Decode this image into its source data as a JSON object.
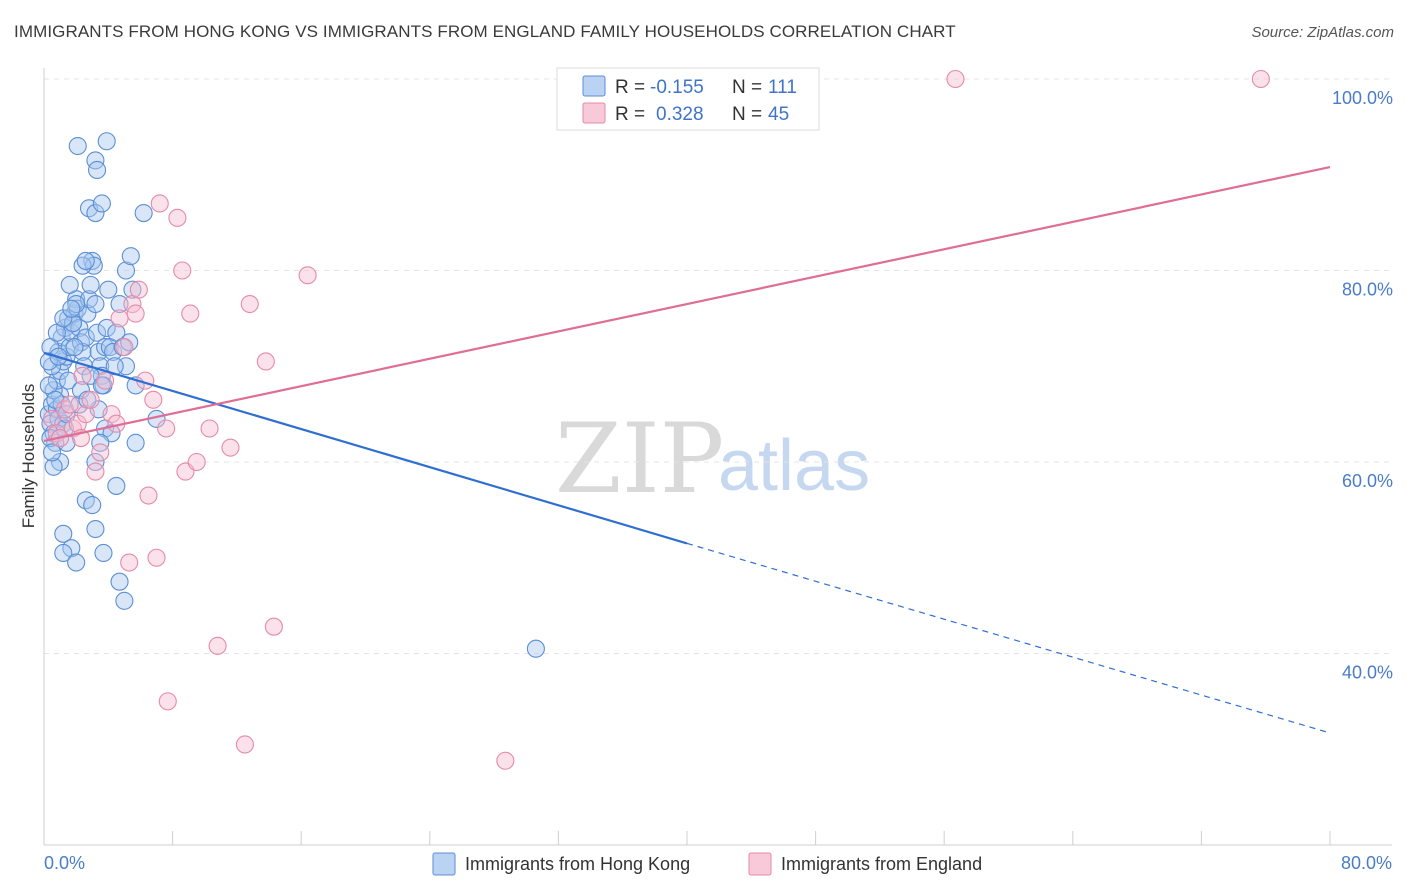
{
  "header": {
    "title": "IMMIGRANTS FROM HONG KONG VS IMMIGRANTS FROM ENGLAND FAMILY HOUSEHOLDS CORRELATION CHART",
    "source": "Source: ZipAtlas.com"
  },
  "legend": {
    "rows": [
      {
        "r_label": "R =",
        "r_value": "-0.155",
        "n_label": "N =",
        "n_value": "111"
      },
      {
        "r_label": "R =",
        "r_value": "0.328",
        "n_label": "N =",
        "n_value": "45"
      }
    ]
  },
  "watermark": {
    "zip": "ZIP",
    "atlas": "atlas"
  },
  "colors": {
    "hk_fill": "#a9c8f0",
    "hk_stroke": "#5b8fd6",
    "hk_line": "#2f6fd1",
    "en_fill": "#f6bcd0",
    "en_stroke": "#e58aa9",
    "en_line": "#e06d95",
    "grid": "#e4e4e4",
    "tick_text": "#4a7cc9"
  },
  "chart_data": {
    "type": "scatter",
    "title": "IMMIGRANTS FROM HONG KONG VS IMMIGRANTS FROM ENGLAND FAMILY HOUSEHOLDS CORRELATION CHART",
    "xlabel": "",
    "ylabel": "Family Households",
    "xlim": [
      0,
      80
    ],
    "ylim": [
      20,
      100
    ],
    "x_tick_labels": [
      "0.0%",
      "80.0%"
    ],
    "y_ticks": [
      40,
      60,
      80,
      100
    ],
    "y_tick_labels": [
      "40.0%",
      "60.0%",
      "80.0%",
      "100.0%"
    ],
    "grid": true,
    "legend_position": "top-center",
    "series": [
      {
        "name": "Immigrants from Hong Kong",
        "r": -0.155,
        "n": 111,
        "trend": {
          "x0": 0,
          "y0": 71.4,
          "x1": 40,
          "y1": 51.5,
          "dashed_to_x": 80,
          "dashed_to_y": 31.7
        },
        "points": [
          [
            0.3,
            65.0
          ],
          [
            0.4,
            64.0
          ],
          [
            0.5,
            66.0
          ],
          [
            0.6,
            63.0
          ],
          [
            0.7,
            62.0
          ],
          [
            0.8,
            65.5
          ],
          [
            0.9,
            64.5
          ],
          [
            1.0,
            67.0
          ],
          [
            1.1,
            66.0
          ],
          [
            1.2,
            64.0
          ],
          [
            1.3,
            63.5
          ],
          [
            1.4,
            65.0
          ],
          [
            0.4,
            62.5
          ],
          [
            0.6,
            67.5
          ],
          [
            0.8,
            68.5
          ],
          [
            1.0,
            69.5
          ],
          [
            1.2,
            70.5
          ],
          [
            1.4,
            71.0
          ],
          [
            0.5,
            70.0
          ],
          [
            0.9,
            71.5
          ],
          [
            1.1,
            73.0
          ],
          [
            1.3,
            74.0
          ],
          [
            1.5,
            75.0
          ],
          [
            1.6,
            72.0
          ],
          [
            1.7,
            73.5
          ],
          [
            1.8,
            74.5
          ],
          [
            1.9,
            75.5
          ],
          [
            2.0,
            77.0
          ],
          [
            2.1,
            76.0
          ],
          [
            2.2,
            74.0
          ],
          [
            2.3,
            72.5
          ],
          [
            2.4,
            71.5
          ],
          [
            2.5,
            70.0
          ],
          [
            2.6,
            73.0
          ],
          [
            2.7,
            75.5
          ],
          [
            2.8,
            77.0
          ],
          [
            2.9,
            78.5
          ],
          [
            3.0,
            81.0
          ],
          [
            3.1,
            80.5
          ],
          [
            3.2,
            76.5
          ],
          [
            3.3,
            73.5
          ],
          [
            3.4,
            71.5
          ],
          [
            3.5,
            70.0
          ],
          [
            3.6,
            69.0
          ],
          [
            3.7,
            68.0
          ],
          [
            3.8,
            72.0
          ],
          [
            3.9,
            74.0
          ],
          [
            4.0,
            78.0
          ],
          [
            4.1,
            72.0
          ],
          [
            4.3,
            71.5
          ],
          [
            4.5,
            73.5
          ],
          [
            4.7,
            76.5
          ],
          [
            4.9,
            72.0
          ],
          [
            5.1,
            70.0
          ],
          [
            5.3,
            72.5
          ],
          [
            5.5,
            78.0
          ],
          [
            5.7,
            68.0
          ],
          [
            1.6,
            78.5
          ],
          [
            2.0,
            76.5
          ],
          [
            2.4,
            80.5
          ],
          [
            1.8,
            74.5
          ],
          [
            2.6,
            81.0
          ],
          [
            3.2,
            91.5
          ],
          [
            3.3,
            90.5
          ],
          [
            2.8,
            86.5
          ],
          [
            3.2,
            86.0
          ],
          [
            3.6,
            87.0
          ],
          [
            2.1,
            93.0
          ],
          [
            3.9,
            93.5
          ],
          [
            6.2,
            86.0
          ],
          [
            5.1,
            80.0
          ],
          [
            5.4,
            81.5
          ],
          [
            3.8,
            63.5
          ],
          [
            4.2,
            63.0
          ],
          [
            3.5,
            62.0
          ],
          [
            3.2,
            60.0
          ],
          [
            1.0,
            60.0
          ],
          [
            0.6,
            59.5
          ],
          [
            2.6,
            56.0
          ],
          [
            3.0,
            55.5
          ],
          [
            3.2,
            53.0
          ],
          [
            1.2,
            52.5
          ],
          [
            1.7,
            51.0
          ],
          [
            1.2,
            50.5
          ],
          [
            3.7,
            50.5
          ],
          [
            2.0,
            49.5
          ],
          [
            4.5,
            57.5
          ],
          [
            4.7,
            47.5
          ],
          [
            5.0,
            45.5
          ],
          [
            5.7,
            62.0
          ],
          [
            7.0,
            64.5
          ],
          [
            0.3,
            68.0
          ],
          [
            0.7,
            66.5
          ],
          [
            1.5,
            68.5
          ],
          [
            2.2,
            66.0
          ],
          [
            2.9,
            69.0
          ],
          [
            3.4,
            65.5
          ],
          [
            4.4,
            70.0
          ],
          [
            0.4,
            72.0
          ],
          [
            0.8,
            73.5
          ],
          [
            1.2,
            75.0
          ],
          [
            1.7,
            76.0
          ],
          [
            0.3,
            70.5
          ],
          [
            0.9,
            71.0
          ],
          [
            1.9,
            72.0
          ],
          [
            2.3,
            67.5
          ],
          [
            2.7,
            66.5
          ],
          [
            3.6,
            68.0
          ],
          [
            1.4,
            62.0
          ],
          [
            0.5,
            61.0
          ],
          [
            30.6,
            40.5
          ]
        ]
      },
      {
        "name": "Immigrants from England",
        "r": 0.328,
        "n": 45,
        "trend": {
          "x0": 0,
          "y0": 62.2,
          "x1": 80,
          "y1": 90.8
        },
        "points": [
          [
            0.5,
            64.5
          ],
          [
            0.8,
            63.0
          ],
          [
            1.0,
            62.5
          ],
          [
            1.3,
            65.5
          ],
          [
            1.6,
            66.0
          ],
          [
            1.8,
            63.5
          ],
          [
            2.1,
            64.0
          ],
          [
            2.3,
            62.5
          ],
          [
            2.6,
            65.0
          ],
          [
            2.9,
            66.5
          ],
          [
            3.2,
            59.0
          ],
          [
            3.5,
            61.0
          ],
          [
            3.8,
            68.5
          ],
          [
            4.2,
            65.0
          ],
          [
            4.5,
            64.0
          ],
          [
            4.7,
            75.0
          ],
          [
            5.0,
            72.0
          ],
          [
            5.5,
            76.5
          ],
          [
            5.7,
            75.5
          ],
          [
            5.9,
            78.0
          ],
          [
            6.3,
            68.5
          ],
          [
            6.5,
            56.5
          ],
          [
            6.8,
            66.5
          ],
          [
            7.0,
            50.0
          ],
          [
            7.2,
            87.0
          ],
          [
            7.6,
            63.5
          ],
          [
            8.3,
            85.5
          ],
          [
            8.6,
            80.0
          ],
          [
            8.8,
            59.0
          ],
          [
            9.1,
            75.5
          ],
          [
            9.5,
            60.0
          ],
          [
            10.3,
            63.5
          ],
          [
            11.6,
            61.5
          ],
          [
            12.8,
            76.5
          ],
          [
            13.8,
            70.5
          ],
          [
            16.4,
            79.5
          ],
          [
            5.3,
            49.5
          ],
          [
            12.5,
            30.5
          ],
          [
            14.3,
            42.8
          ],
          [
            7.7,
            35.0
          ],
          [
            28.7,
            28.8
          ],
          [
            56.7,
            100.0
          ],
          [
            75.7,
            100.0
          ],
          [
            10.8,
            40.8
          ],
          [
            2.4,
            69.0
          ]
        ]
      }
    ]
  },
  "bottom_legend": {
    "items": [
      {
        "label": "Immigrants from Hong Kong"
      },
      {
        "label": "Immigrants from England"
      }
    ]
  }
}
